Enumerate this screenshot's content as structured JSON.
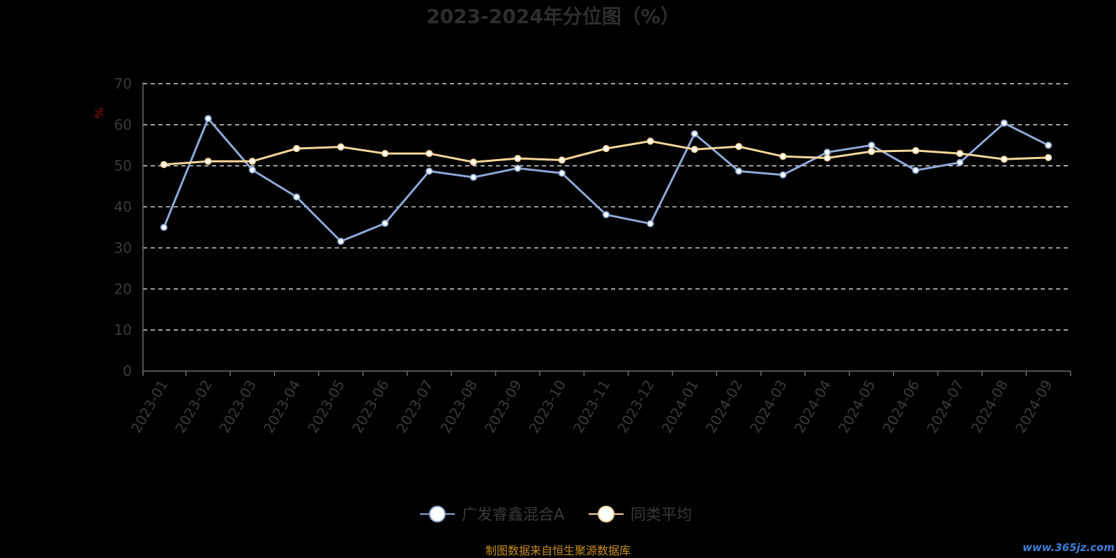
{
  "chart_data": {
    "type": "line",
    "title": "2023-2024年分位图（%）",
    "ylabel": "%",
    "xlabel": "",
    "ylim": [
      0,
      70
    ],
    "yticks": [
      0,
      10,
      20,
      30,
      40,
      50,
      60,
      70
    ],
    "grid": true,
    "legend_position": "bottom",
    "categories": [
      "2023-01",
      "2023-02",
      "2023-03",
      "2023-04",
      "2023-05",
      "2023-06",
      "2023-07",
      "2023-08",
      "2023-09",
      "2023-10",
      "2023-11",
      "2023-12",
      "2024-01",
      "2024-02",
      "2024-03",
      "2024-04",
      "2024-05",
      "2024-06",
      "2024-07",
      "2024-08",
      "2024-09"
    ],
    "series": [
      {
        "name": "广发睿鑫混合A",
        "color": "#8fa9d8",
        "values": [
          35.0,
          61.5,
          49.0,
          42.4,
          31.6,
          36.0,
          48.7,
          47.2,
          49.4,
          48.2,
          38.1,
          35.9,
          57.8,
          48.7,
          47.8,
          53.3,
          55.0,
          48.9,
          50.8,
          60.4,
          55.0
        ]
      },
      {
        "name": "同类平均",
        "color": "#f7d79a",
        "values": [
          50.3,
          51.1,
          51.1,
          54.2,
          54.6,
          53.0,
          53.0,
          50.9,
          51.8,
          51.4,
          54.2,
          56.0,
          54.0,
          54.7,
          52.3,
          51.9,
          53.5,
          53.7,
          53.0,
          51.6,
          52.0
        ]
      }
    ]
  },
  "source_note": "制图数据来自恒生聚源数据库",
  "watermark": "www.365jz.com",
  "colors": {
    "background": "#000000",
    "grid": "#ffffff",
    "axis": "#6e6e6e",
    "series_a": "#8fa9d8",
    "series_b": "#f7d79a",
    "source": "#c8901e"
  }
}
